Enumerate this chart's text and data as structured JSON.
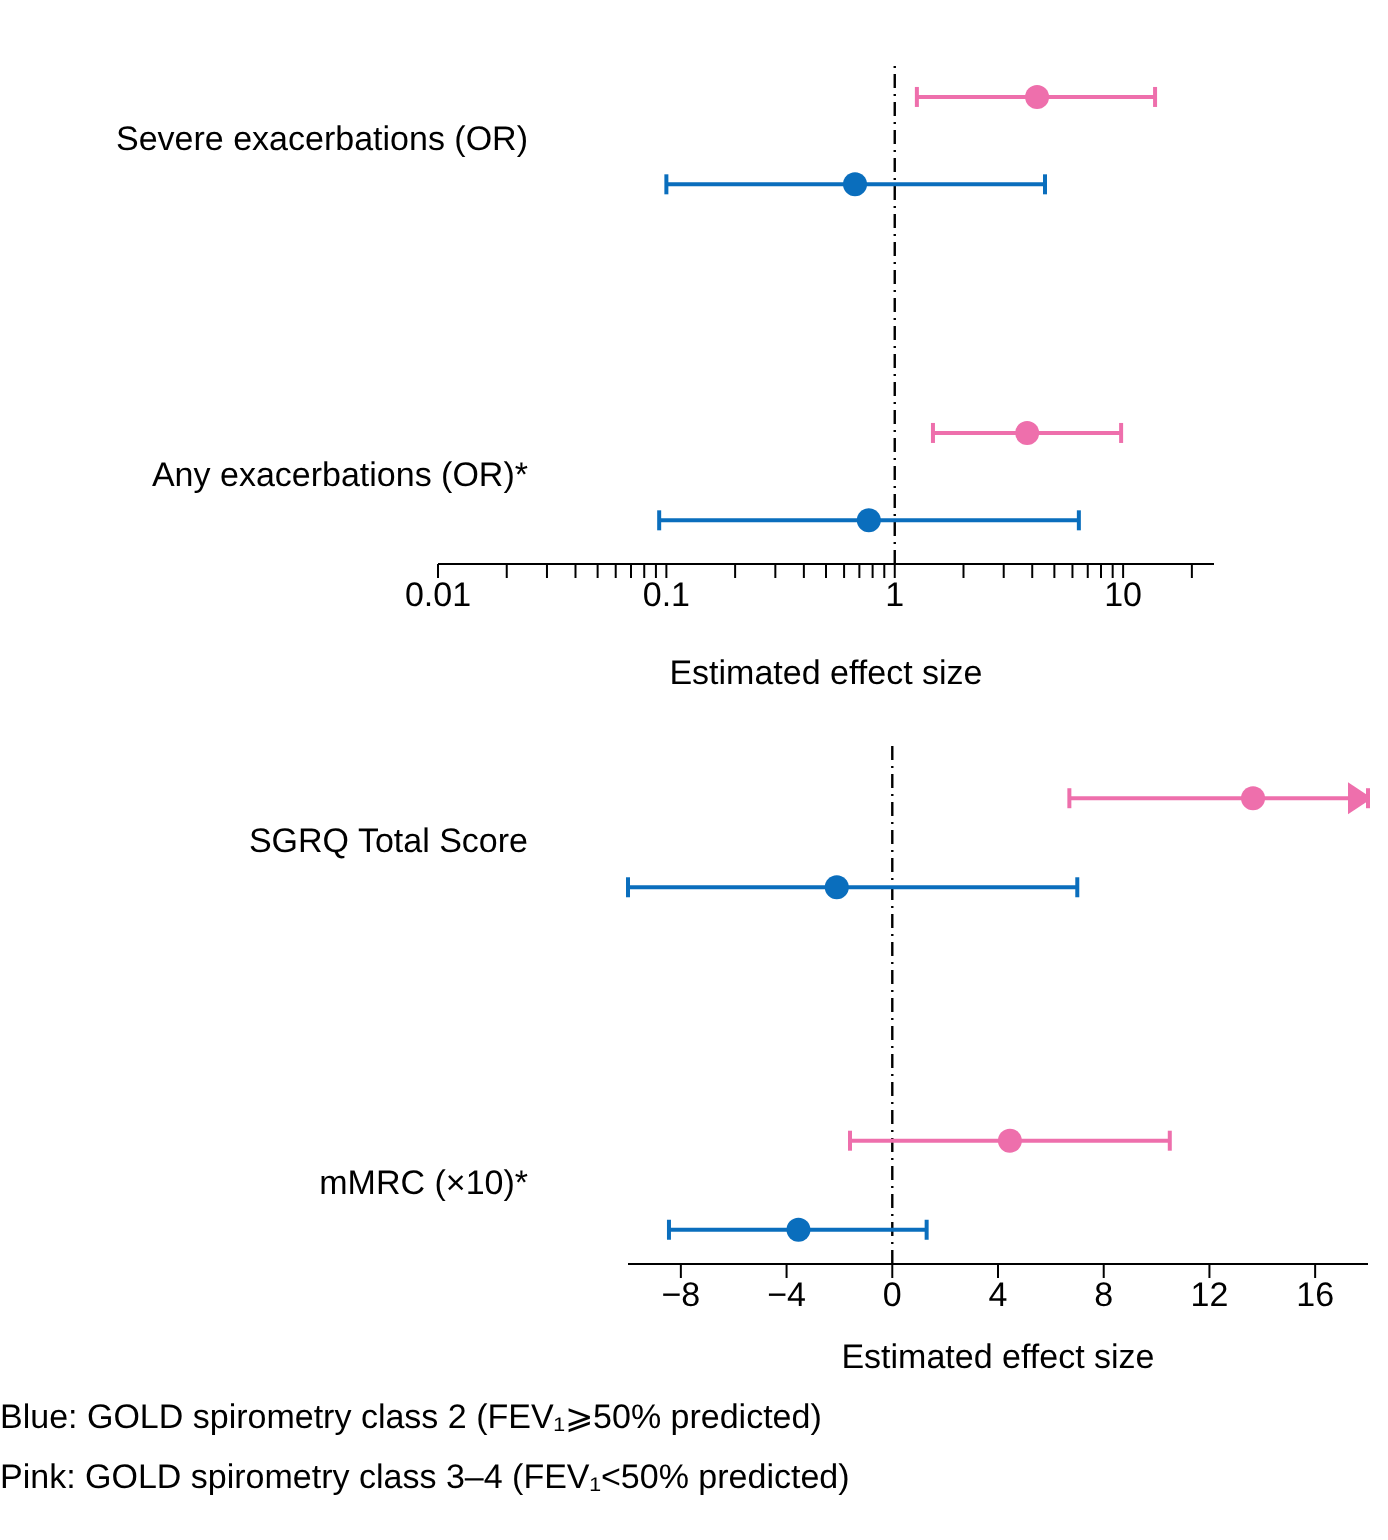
{
  "chart_data": [
    {
      "type": "scatter",
      "orientation": "horizontal",
      "log": "x",
      "xlabel": "Estimated effect size",
      "categories": [
        "Severe exacerbations (OR)",
        "Any exacerbations (OR)*"
      ],
      "marker": "circle",
      "xlim": [
        0.01,
        25
      ],
      "xticks": [
        0.01,
        {
          "value": 0.02,
          "label": null
        },
        {
          "value": 0.03,
          "label": null
        },
        {
          "value": 0.04,
          "label": null
        },
        {
          "value": 0.05,
          "label": null
        },
        {
          "value": 0.06,
          "label": null
        },
        {
          "value": 0.07,
          "label": null
        },
        {
          "value": 0.08,
          "label": null
        },
        {
          "value": 0.09,
          "label": null
        },
        0.1,
        {
          "value": 0.2,
          "label": null
        },
        {
          "value": 0.3,
          "label": null
        },
        {
          "value": 0.4,
          "label": null
        },
        {
          "value": 0.5,
          "label": null
        },
        {
          "value": 0.6,
          "label": null
        },
        {
          "value": 0.7,
          "label": null
        },
        {
          "value": 0.8,
          "label": null
        },
        {
          "value": 0.9,
          "label": null
        },
        1,
        {
          "value": 2,
          "label": null
        },
        {
          "value": 3,
          "label": null
        },
        {
          "value": 4,
          "label": null
        },
        {
          "value": 5,
          "label": null
        },
        {
          "value": 6,
          "label": null
        },
        {
          "value": 7,
          "label": null
        },
        {
          "value": 8,
          "label": null
        },
        {
          "value": 9,
          "label": null
        },
        10,
        {
          "value": 20,
          "label": null
        }
      ],
      "ref_lines": [
        {
          "axis": "x",
          "value": 1,
          "color": "#000000",
          "line_style": "dashed"
        }
      ],
      "series": [
        {
          "color": "#0a6ebd",
          "values": [
            0.67,
            0.77
          ],
          "errors": [
            [
              0.1,
              4.55
            ],
            [
              0.093,
              6.4
            ]
          ]
        },
        {
          "color": "#ee6fac",
          "values": [
            4.2,
            3.8
          ],
          "errors": [
            [
              1.25,
              13.8
            ],
            [
              1.47,
              9.8
            ]
          ]
        }
      ]
    },
    {
      "type": "scatter",
      "orientation": "horizontal",
      "xlabel": "Estimated effect size",
      "categories": [
        "SGRQ Total Score",
        "mMRC (×10)*"
      ],
      "marker": "circle",
      "xlim": [
        -10,
        18
      ],
      "xticks": [
        {
          "value": -8,
          "label": "−8"
        },
        {
          "value": -4,
          "label": "−4"
        },
        0,
        4,
        8,
        12,
        16
      ],
      "ref_lines": [
        {
          "axis": "x",
          "value": 0,
          "color": "#000000",
          "line_style": "dashed"
        }
      ],
      "annotations": [
        "Blue: GOLD spirometry class 2 (FEV₁⩾50% predicted)",
        "Pink: GOLD spirometry class 3–4 (FEV₁<50% predicted)"
      ],
      "series": [
        {
          "color": "#0a6ebd",
          "values": [
            -2.1,
            -3.55
          ],
          "errors": [
            [
              -10,
              7.0
            ],
            [
              -8.45,
              1.3
            ]
          ]
        },
        {
          "color": "#ee6fac",
          "values": [
            13.65,
            4.45
          ],
          "errors": [
            [
              6.7,
              18
            ],
            [
              -1.6,
              10.5
            ]
          ]
        }
      ]
    }
  ]
}
